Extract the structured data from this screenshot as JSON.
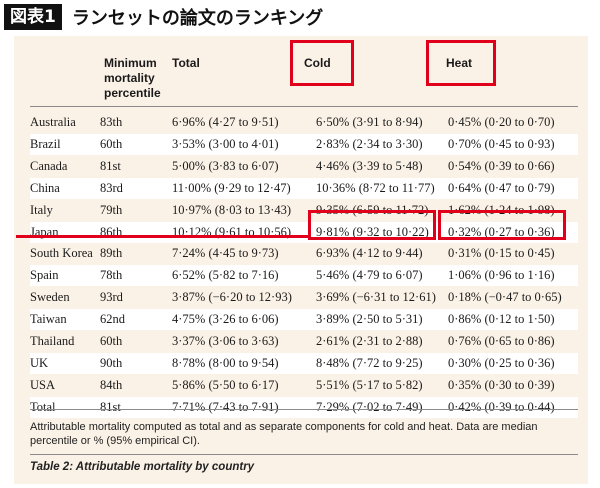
{
  "header": {
    "badge": "図表1",
    "title": "ランセットの論文のランキング"
  },
  "table": {
    "col_headers": {
      "percentile": [
        "Minimum",
        "mortality",
        "percentile"
      ],
      "total": "Total",
      "cold": "Cold",
      "heat": "Heat"
    },
    "rows": [
      {
        "country": "Australia",
        "percentile": "83th",
        "total": "6·96% (4·27 to 9·51)",
        "cold": "6·50% (3·91 to 8·94)",
        "heat": "0·45% (0·20 to 0·70)"
      },
      {
        "country": "Brazil",
        "percentile": "60th",
        "total": "3·53% (3·00 to 4·01)",
        "cold": "2·83% (2·34 to 3·30)",
        "heat": "0·70% (0·45 to 0·93)"
      },
      {
        "country": "Canada",
        "percentile": "81st",
        "total": "5·00% (3·83 to 6·07)",
        "cold": "4·46% (3·39 to 5·48)",
        "heat": "0·54% (0·39 to 0·66)"
      },
      {
        "country": "China",
        "percentile": "83rd",
        "total": "11·00% (9·29 to 12·47)",
        "cold": "10·36% (8·72 to 11·77)",
        "heat": "0·64% (0·47 to 0·79)"
      },
      {
        "country": "Italy",
        "percentile": "79th",
        "total": "10·97% (8·03 to 13·43)",
        "cold": "9·35% (6·59 to 11·72)",
        "heat": "1·62% (1·24 to 1·98)"
      },
      {
        "country": "Japan",
        "percentile": "86th",
        "total": "10·12% (9·61 to 10·56)",
        "cold": "9·81% (9·32 to 10·22)",
        "heat": "0·32% (0·27 to 0·36)"
      },
      {
        "country": "South Korea",
        "percentile": "89th",
        "total": "7·24% (4·45 to 9·73)",
        "cold": "6·93% (4·12 to 9·44)",
        "heat": "0·31% (0·15 to 0·45)"
      },
      {
        "country": "Spain",
        "percentile": "78th",
        "total": "6·52% (5·82 to 7·16)",
        "cold": "5·46% (4·79 to 6·07)",
        "heat": "1·06% (0·96 to 1·16)"
      },
      {
        "country": "Sweden",
        "percentile": "93rd",
        "total": "3·87% (−6·20 to 12·93)",
        "cold": "3·69% (−6·31 to 12·61)",
        "heat": "0·18% (−0·47 to 0·65)"
      },
      {
        "country": "Taiwan",
        "percentile": "62nd",
        "total": "4·75% (3·26 to 6·06)",
        "cold": "3·89% (2·50 to 5·31)",
        "heat": "0·86% (0·12 to 1·50)"
      },
      {
        "country": "Thailand",
        "percentile": "60th",
        "total": "3·37% (3·06 to 3·63)",
        "cold": "2·61% (2·31 to 2·88)",
        "heat": "0·76% (0·65 to 0·86)"
      },
      {
        "country": "UK",
        "percentile": "90th",
        "total": "8·78% (8·00 to 9·54)",
        "cold": "8·48% (7·72 to 9·25)",
        "heat": "0·30% (0·25 to 0·36)"
      },
      {
        "country": "USA",
        "percentile": "84th",
        "total": "5·86% (5·50 to 6·17)",
        "cold": "5·51% (5·17 to 5·82)",
        "heat": "0·35% (0·30 to 0·39)"
      },
      {
        "country": "Total",
        "percentile": "81st",
        "total": "7·71% (7·43 to 7·91)",
        "cold": "7·29% (7·02 to 7·49)",
        "heat": "0·42% (0·39 to 0·44)"
      }
    ]
  },
  "footnote": "Attributable mortality computed as total and as separate components for cold and heat. Data are median percentile or % (95% empirical CI).",
  "caption": "Table 2: Attributable mortality by country",
  "colors": {
    "highlight": "#e0001b",
    "card": "#fbf2e7",
    "shade": "#ffffff"
  }
}
